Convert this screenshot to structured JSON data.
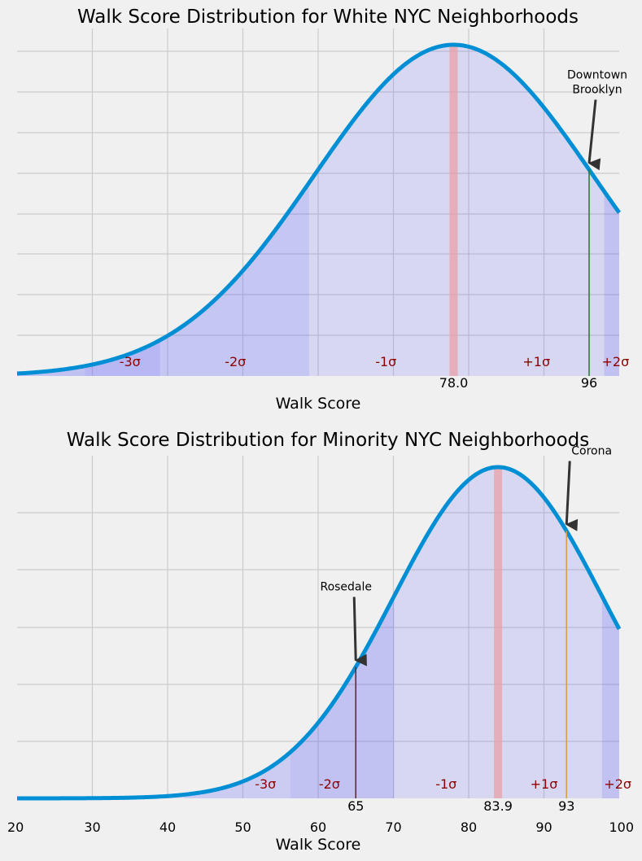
{
  "chart_data": [
    {
      "type": "area",
      "title": "Walk Score Distribution for White NYC Neighborhoods",
      "xlabel": "Walk Score",
      "ylabel": "",
      "xlim": [
        20,
        100
      ],
      "show_x_tick_labels": false,
      "grid": true,
      "distribution": {
        "mean": 78.0,
        "sd": 18.5
      },
      "mean_label": "78.0",
      "mean_color": "#e8a0a8",
      "band_boundaries": [
        20,
        29.0,
        39.0,
        58.8,
        96.0,
        98.0,
        100
      ],
      "band_opacities": [
        0.3,
        0.38,
        0.28,
        0.16,
        0.16,
        0.3
      ],
      "sigma_labels": [
        {
          "text": "-3σ",
          "x": 35.0
        },
        {
          "text": "-2σ",
          "x": 49.0
        },
        {
          "text": "-1σ",
          "x": 69.0
        },
        {
          "text": "+1σ",
          "x": 89.0
        },
        {
          "text": "+2σ",
          "x": 99.5
        }
      ],
      "markers": [
        {
          "value": 96,
          "label": "96",
          "annotation": [
            "Downtown",
            "Brooklyn"
          ],
          "color": "#2e7d32"
        }
      ]
    },
    {
      "type": "area",
      "title": "Walk Score Distribution for Minority NYC Neighborhoods",
      "xlabel": "Walk Score",
      "ylabel": "",
      "xlim": [
        20,
        100
      ],
      "show_x_tick_labels": true,
      "x_ticks": [
        20,
        30,
        40,
        50,
        60,
        70,
        80,
        90,
        100
      ],
      "grid": true,
      "distribution": {
        "mean": 83.9,
        "sd": 13.9
      },
      "mean_label": "83.9",
      "mean_color": "#e8a0a8",
      "band_boundaries": [
        20,
        42.2,
        56.3,
        70.1,
        97.7,
        100
      ],
      "band_opacities": [
        0.12,
        0.24,
        0.3,
        0.16,
        0.3
      ],
      "sigma_labels": [
        {
          "text": "-3σ",
          "x": 53.0
        },
        {
          "text": "-2σ",
          "x": 61.5
        },
        {
          "text": "-1σ",
          "x": 77.0
        },
        {
          "text": "+1σ",
          "x": 90.0
        },
        {
          "text": "+2σ",
          "x": 99.8
        }
      ],
      "markers": [
        {
          "value": 65,
          "label": "65",
          "annotation": [
            "Rosedale"
          ],
          "color": "#5d2e2e"
        },
        {
          "value": 93,
          "label": "93",
          "annotation": [
            "Corona"
          ],
          "color": "#d4a04a"
        }
      ]
    }
  ]
}
